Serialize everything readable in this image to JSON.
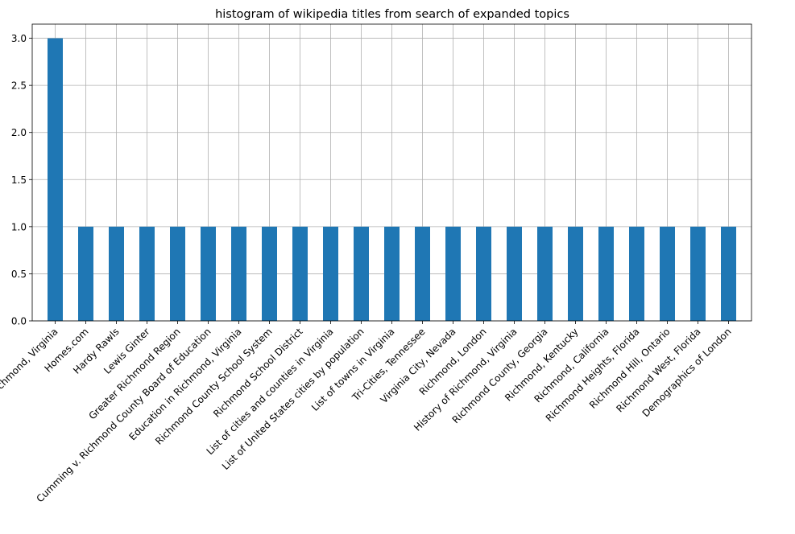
{
  "chart_data": {
    "type": "bar",
    "title": "histogram of wikipedia titles from search of expanded topics",
    "xlabel": "",
    "ylabel": "",
    "ylim": [
      0,
      3.15
    ],
    "yticks": [
      "0.0",
      "0.5",
      "1.0",
      "1.5",
      "2.0",
      "2.5",
      "3.0"
    ],
    "grid": true,
    "color": "#1f77b4",
    "categories": [
      "Richmond, Virginia",
      "Homes.com",
      "Hardy Rawls",
      "Lewis Ginter",
      "Greater Richmond Region",
      "Cumming v. Richmond County Board of Education",
      "Education in Richmond, Virginia",
      "Richmond County School System",
      "Richmond School District",
      "List of cities and counties in Virginia",
      "List of United States cities by population",
      "List of towns in Virginia",
      "Tri-Cities, Tennessee",
      "Virginia City, Nevada",
      "Richmond, London",
      "History of Richmond, Virginia",
      "Richmond County, Georgia",
      "Richmond, Kentucky",
      "Richmond, California",
      "Richmond Heights, Florida",
      "Richmond Hill, Ontario",
      "Richmond West, Florida",
      "Demographics of London"
    ],
    "values": [
      3,
      1,
      1,
      1,
      1,
      1,
      1,
      1,
      1,
      1,
      1,
      1,
      1,
      1,
      1,
      1,
      1,
      1,
      1,
      1,
      1,
      1,
      1
    ]
  }
}
